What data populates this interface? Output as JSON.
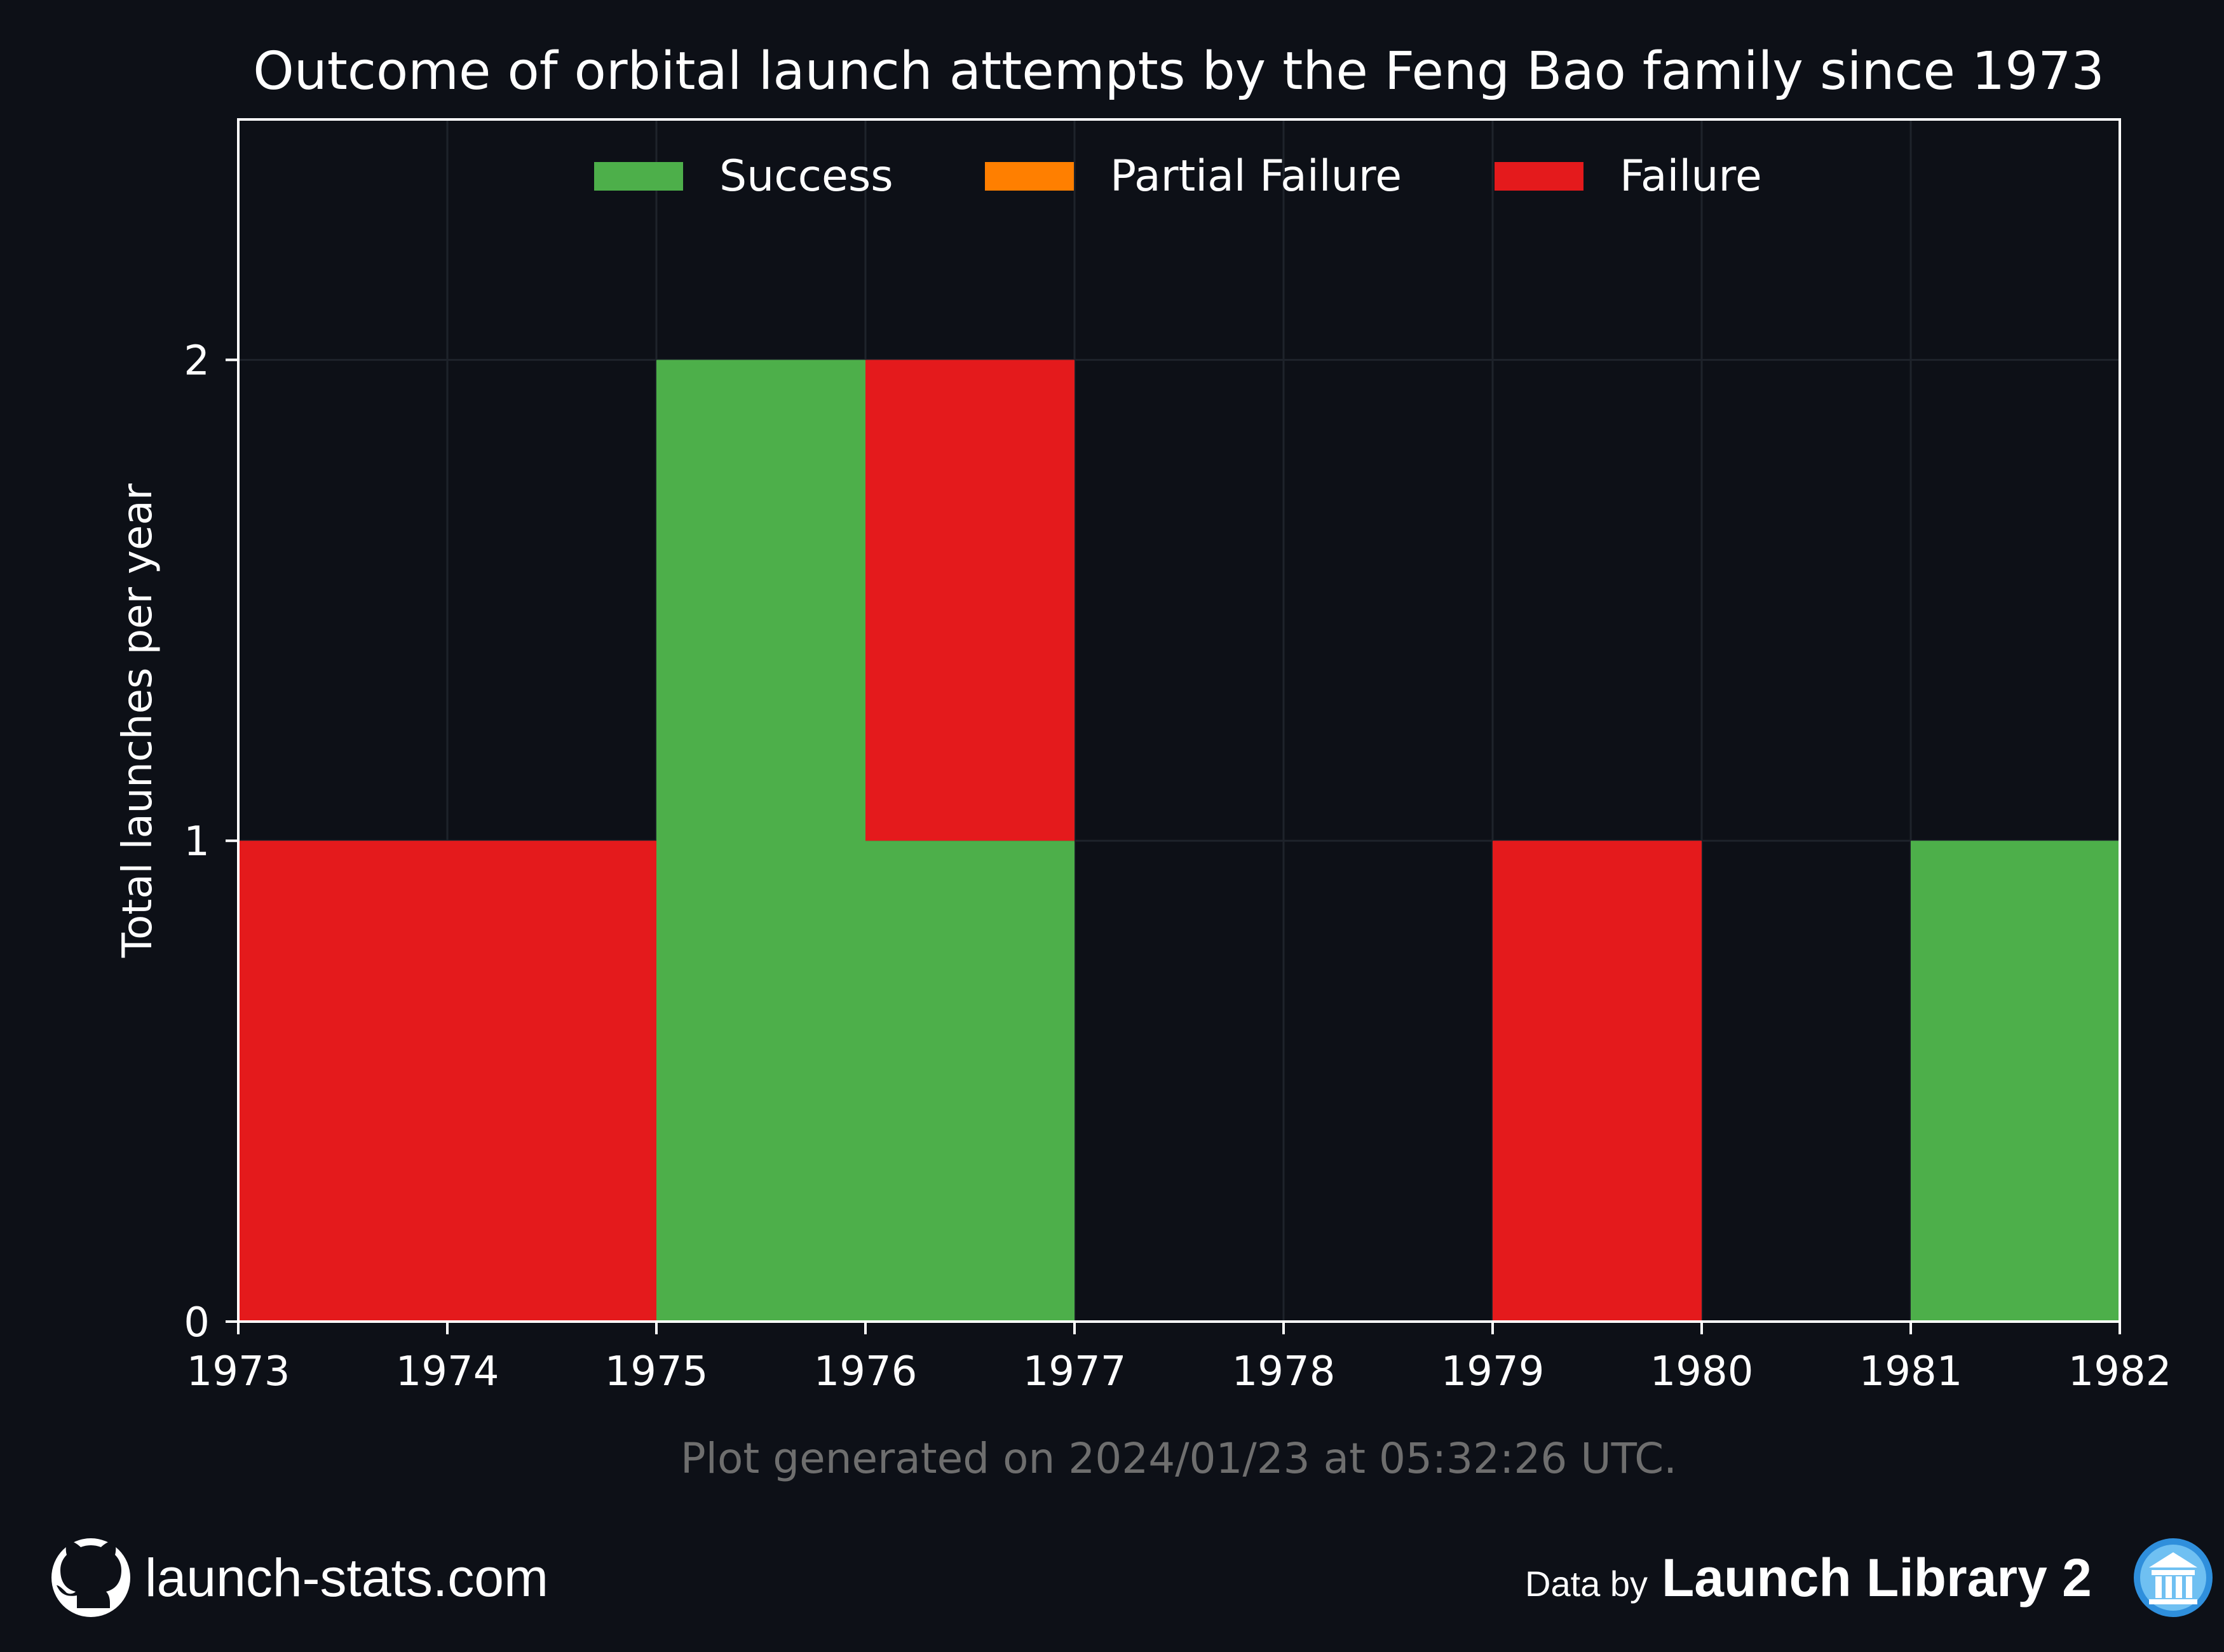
{
  "chart_data": {
    "type": "bar",
    "stacked": true,
    "title": "Outcome of orbital launch attempts by the Feng Bao family since 1973",
    "xlabel": "",
    "ylabel": "Total launches per year",
    "xlim": [
      1973,
      1982
    ],
    "ylim": [
      0,
      2.5
    ],
    "x_ticks": [
      1973,
      1974,
      1975,
      1976,
      1977,
      1978,
      1979,
      1980,
      1981,
      1982
    ],
    "y_ticks": [
      0,
      1,
      2
    ],
    "grid": true,
    "legend_position": "top-center",
    "categories": [
      1973,
      1974,
      1975,
      1976,
      1977,
      1978,
      1979,
      1980,
      1981
    ],
    "series": [
      {
        "name": "Success",
        "color": "#4daf4a",
        "values": [
          0,
          0,
          2,
          1,
          0,
          0,
          0,
          0,
          1
        ]
      },
      {
        "name": "Partial Failure",
        "color": "#ff7f00",
        "values": [
          0,
          0,
          0,
          0,
          0,
          0,
          0,
          0,
          0
        ]
      },
      {
        "name": "Failure",
        "color": "#e41a1c",
        "values": [
          1,
          1,
          0,
          1,
          0,
          0,
          1,
          0,
          0
        ]
      }
    ]
  },
  "footnote": "Plot generated on 2024/01/23 at 05:32:26 UTC.",
  "footer": {
    "left_text": "launch-stats.com",
    "left_icon": "github-icon",
    "right_prefix": "Data by",
    "right_brand": "Launch Library 2",
    "right_icon": "launch-library-icon"
  },
  "colors": {
    "background": "#0d1017",
    "axes": "#ffffff",
    "grid": "#1e232b"
  }
}
